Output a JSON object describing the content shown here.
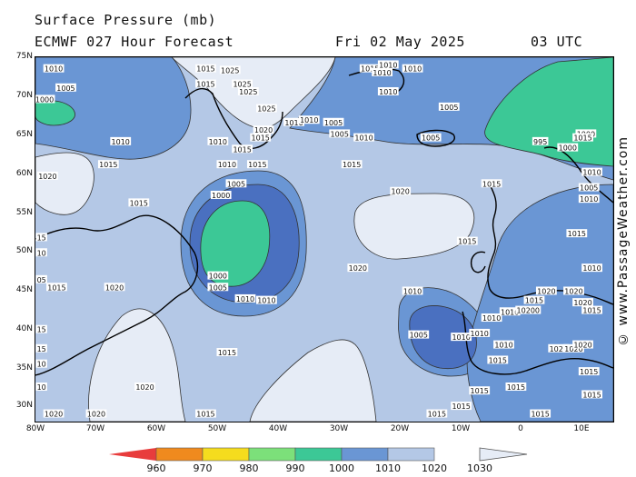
{
  "header": {
    "title": "Surface Pressure (mb)",
    "model": "ECMWF 027 Hour Forecast",
    "date": "Fri 02 May 2025",
    "time": "03 UTC"
  },
  "credit": "© www.PassageWeather.com",
  "axes": {
    "lat_labels": [
      "75N",
      "70N",
      "65N",
      "60N",
      "55N",
      "50N",
      "45N",
      "40N",
      "35N",
      "30N"
    ],
    "lon_labels": [
      "80W",
      "70W",
      "60W",
      "50W",
      "40W",
      "30W",
      "20W",
      "10W",
      "0",
      "10E"
    ]
  },
  "colorbar": {
    "labels": [
      "960",
      "970",
      "980",
      "990",
      "1000",
      "1010",
      "1020",
      "1030"
    ],
    "colors": [
      "#e83c3c",
      "#f08a1e",
      "#f5dc1e",
      "#7ce07a",
      "#3cc896",
      "#6a96d4",
      "#b4c8e6",
      "#e6ecf6"
    ]
  },
  "colors": {
    "band_1010_1015": "#6a96d4",
    "band_1015_1020": "#b4c8e6",
    "band_1020_1025": "#e6ecf6",
    "band_1000_1005": "#4a70c0",
    "band_995_1000": "#3cc896",
    "land_outline": "#000000"
  },
  "contour_labels": [
    {
      "text": "1010",
      "lon": -77,
      "lat": 73.5
    },
    {
      "text": "1005",
      "lon": -75,
      "lat": 71.0
    },
    {
      "text": "1000",
      "lon": -78.5,
      "lat": 69.5
    },
    {
      "text": "1010",
      "lon": -66,
      "lat": 64.0
    },
    {
      "text": "1015",
      "lon": -68,
      "lat": 61.0
    },
    {
      "text": "1020",
      "lon": -78,
      "lat": 59.5
    },
    {
      "text": "1015",
      "lon": -63,
      "lat": 56.0
    },
    {
      "text": "1015",
      "lon": -52,
      "lat": 73.5
    },
    {
      "text": "1015",
      "lon": -52,
      "lat": 71.5
    },
    {
      "text": "1025",
      "lon": -48,
      "lat": 73.3
    },
    {
      "text": "1025",
      "lon": -46,
      "lat": 71.5
    },
    {
      "text": "1025",
      "lon": -45,
      "lat": 70.5
    },
    {
      "text": "1025",
      "lon": -42,
      "lat": 68.3
    },
    {
      "text": "1020",
      "lon": -42.5,
      "lat": 65.5
    },
    {
      "text": "1010",
      "lon": -37.5,
      "lat": 66.5
    },
    {
      "text": "1015",
      "lon": -43,
      "lat": 64.5
    },
    {
      "text": "1010",
      "lon": -50,
      "lat": 64.0
    },
    {
      "text": "1015",
      "lon": -46,
      "lat": 63.0
    },
    {
      "text": "1010",
      "lon": -48.5,
      "lat": 61.0
    },
    {
      "text": "1015",
      "lon": -43.5,
      "lat": 61.0
    },
    {
      "text": "1005",
      "lon": -47,
      "lat": 58.5
    },
    {
      "text": "1000",
      "lon": -49.5,
      "lat": 57.0
    },
    {
      "text": "1000",
      "lon": -50,
      "lat": 46.5
    },
    {
      "text": "1005",
      "lon": -50,
      "lat": 45.0
    },
    {
      "text": "1010",
      "lon": -45.5,
      "lat": 43.5
    },
    {
      "text": "1010",
      "lon": -42,
      "lat": 43.3
    },
    {
      "text": "1015",
      "lon": -48.5,
      "lat": 36.5
    },
    {
      "text": "1015",
      "lon": -52,
      "lat": 28.5
    },
    {
      "text": "1020",
      "lon": -67,
      "lat": 45.0
    },
    {
      "text": "1015",
      "lon": -76.5,
      "lat": 45.0
    },
    {
      "text": "1020",
      "lon": -62,
      "lat": 32.0
    },
    {
      "text": "1020",
      "lon": -77,
      "lat": 28.5
    },
    {
      "text": "1020",
      "lon": -70,
      "lat": 28.5
    },
    {
      "text": "1010",
      "lon": -35,
      "lat": 66.8
    },
    {
      "text": "1005",
      "lon": -31,
      "lat": 66.5
    },
    {
      "text": "1005",
      "lon": -30,
      "lat": 65.0
    },
    {
      "text": "1010",
      "lon": -26,
      "lat": 64.5
    },
    {
      "text": "1015",
      "lon": -25,
      "lat": 73.5
    },
    {
      "text": "1010",
      "lon": -22,
      "lat": 74.0
    },
    {
      "text": "1010",
      "lon": -23,
      "lat": 73.0
    },
    {
      "text": "1010",
      "lon": -18,
      "lat": 73.5
    },
    {
      "text": "1010",
      "lon": -22,
      "lat": 70.5
    },
    {
      "text": "1005",
      "lon": -12,
      "lat": 68.5
    },
    {
      "text": "1005",
      "lon": -15,
      "lat": 64.5
    },
    {
      "text": "995",
      "lon": 3,
      "lat": 64.0
    },
    {
      "text": "1000",
      "lon": 7.5,
      "lat": 63.2
    },
    {
      "text": "1000",
      "lon": 10.5,
      "lat": 65.0
    },
    {
      "text": "1015",
      "lon": -28,
      "lat": 61.0
    },
    {
      "text": "1020",
      "lon": -20,
      "lat": 57.5
    },
    {
      "text": "1015",
      "lon": -5,
      "lat": 58.5
    },
    {
      "text": "1015",
      "lon": -9,
      "lat": 51.0
    },
    {
      "text": "1020",
      "lon": -27,
      "lat": 47.5
    },
    {
      "text": "1010",
      "lon": -18,
      "lat": 44.5
    },
    {
      "text": "1005",
      "lon": -17,
      "lat": 38.8
    },
    {
      "text": "1010",
      "lon": -10,
      "lat": 38.5
    },
    {
      "text": "1010",
      "lon": -5,
      "lat": 41.0
    },
    {
      "text": "1010",
      "lon": -7,
      "lat": 39.0
    },
    {
      "text": "1010",
      "lon": -3,
      "lat": 37.5
    },
    {
      "text": "1015",
      "lon": -4,
      "lat": 35.5
    },
    {
      "text": "1015",
      "lon": -7,
      "lat": 31.5
    },
    {
      "text": "1015",
      "lon": -1,
      "lat": 32.0
    },
    {
      "text": "1015",
      "lon": -10,
      "lat": 29.5
    },
    {
      "text": "1015",
      "lon": -14,
      "lat": 28.5
    },
    {
      "text": "1015",
      "lon": 3,
      "lat": 28.5
    },
    {
      "text": "1015",
      "lon": 2,
      "lat": 43.3
    },
    {
      "text": "1020",
      "lon": 4,
      "lat": 44.5
    },
    {
      "text": "1010",
      "lon": -2,
      "lat": 41.8
    },
    {
      "text": "10200",
      "lon": 1,
      "lat": 42.0
    },
    {
      "text": "1020",
      "lon": 6,
      "lat": 37.0
    },
    {
      "text": "1020",
      "lon": 8.5,
      "lat": 37.0
    },
    {
      "text": "1020",
      "lon": 8.5,
      "lat": 44.5
    },
    {
      "text": "1020",
      "lon": 10,
      "lat": 43.0
    },
    {
      "text": "1020",
      "lon": 10,
      "lat": 37.5
    },
    {
      "text": "1015",
      "lon": 9,
      "lat": 52.0
    },
    {
      "text": "1010",
      "lon": 11.5,
      "lat": 47.5
    },
    {
      "text": "1015",
      "lon": 11.5,
      "lat": 42.0
    },
    {
      "text": "1015",
      "lon": 11,
      "lat": 34.0
    },
    {
      "text": "1015",
      "lon": 11.5,
      "lat": 31.0
    },
    {
      "text": "1015",
      "lon": 10,
      "lat": 64.5
    },
    {
      "text": "1010",
      "lon": 11.5,
      "lat": 60.0
    },
    {
      "text": "1005",
      "lon": 11,
      "lat": 58.0
    },
    {
      "text": "1010",
      "lon": 11,
      "lat": 56.5
    },
    {
      "text": "15",
      "lon": -79,
      "lat": 51.5
    },
    {
      "text": "10",
      "lon": -79,
      "lat": 49.5
    },
    {
      "text": "05",
      "lon": -79,
      "lat": 46.0
    },
    {
      "text": "15",
      "lon": -79,
      "lat": 39.5
    },
    {
      "text": "15",
      "lon": -79,
      "lat": 37.0
    },
    {
      "text": "10",
      "lon": -79,
      "lat": 35.0
    },
    {
      "text": "10",
      "lon": -79,
      "lat": 32.0
    }
  ]
}
